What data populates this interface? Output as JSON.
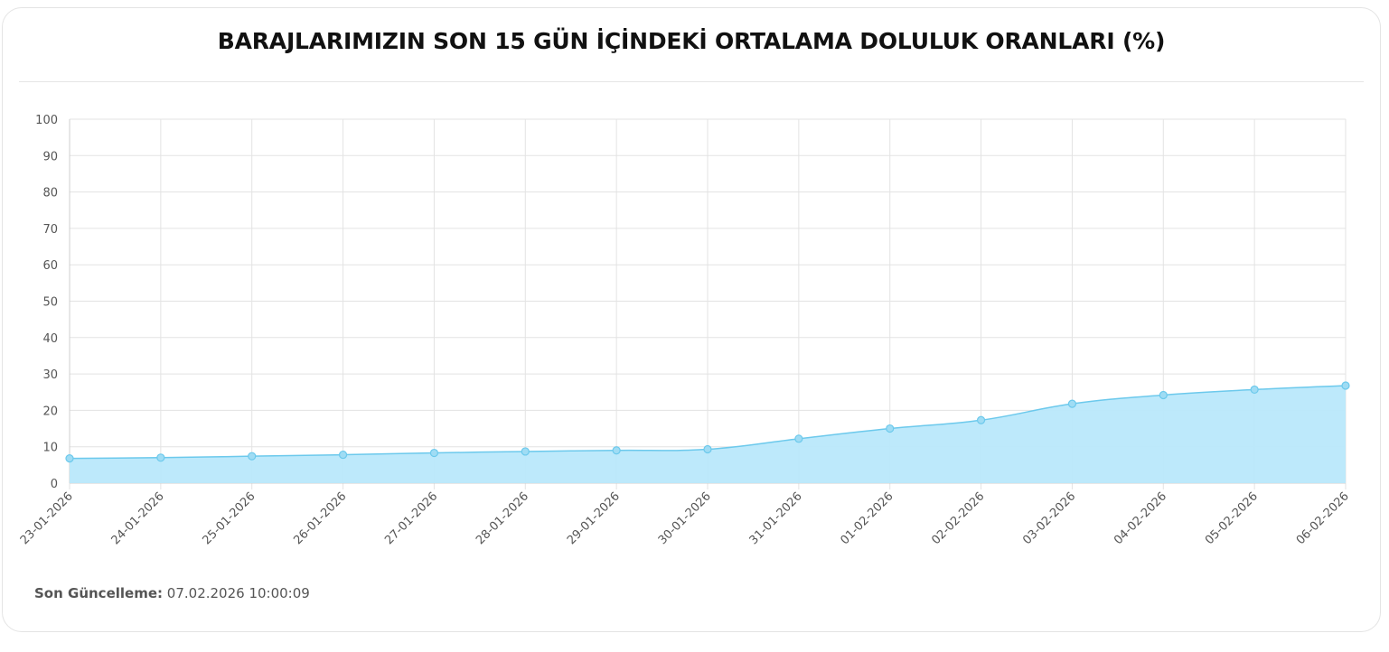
{
  "page": {
    "title": "BARAJLARIMIZIN SON 15 GÜN İÇİNDEKİ ORTALAMA DOLULUK ORANLARI (%)",
    "footer": {
      "label": "Son Güncelleme:",
      "value": "07.02.2026 10:00:09"
    }
  },
  "colors": {
    "line": "#6cc9ec",
    "fill": "#b9e8fb",
    "point_fill": "#9fdcf4",
    "grid": "#e3e3e3",
    "tick_text": "#555555"
  },
  "chart_data": {
    "type": "area",
    "title": "BARAJLARIMIZIN SON 15 GÜN İÇİNDEKİ ORTALAMA DOLULUK ORANLARI (%)",
    "xlabel": "",
    "ylabel": "",
    "ylim": [
      0,
      100
    ],
    "yticks": [
      0,
      10,
      20,
      30,
      40,
      50,
      60,
      70,
      80,
      90,
      100
    ],
    "grid": true,
    "legend": "none",
    "categories": [
      "23-01-2026",
      "24-01-2026",
      "25-01-2026",
      "26-01-2026",
      "27-01-2026",
      "28-01-2026",
      "29-01-2026",
      "30-01-2026",
      "31-01-2026",
      "01-02-2026",
      "02-02-2026",
      "03-02-2026",
      "04-02-2026",
      "05-02-2026",
      "06-02-2026"
    ],
    "series": [
      {
        "values": [
          6.8,
          7.0,
          7.4,
          7.8,
          8.3,
          8.7,
          9.0,
          9.3,
          12.2,
          15.0,
          17.3,
          21.8,
          24.2,
          25.7,
          26.8
        ]
      }
    ]
  }
}
